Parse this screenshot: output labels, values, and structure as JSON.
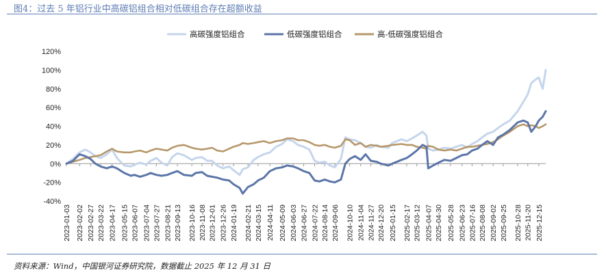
{
  "figure_title": "图4：过去 5 年铝行业中高碳铝组合相对低碳组合存在超额收益",
  "source_note": "资料来源：Wind，中国银河证券研究院，数据截止 2025 年 12 月 31 日",
  "colors": {
    "high": "#c5d5ec",
    "low": "#5b75a8",
    "diff": "#b6976a",
    "axis": "#999999",
    "rule": "#5b7bb3"
  },
  "chart_data": {
    "type": "line",
    "title": "",
    "xlabel": "",
    "ylabel": "",
    "ylim": [
      -40,
      120
    ],
    "yticks": [
      -40,
      -20,
      0,
      20,
      40,
      60,
      80,
      100,
      120
    ],
    "ytick_labels": [
      "-40%",
      "-20%",
      "0%",
      "20%",
      "40%",
      "60%",
      "80%",
      "100%",
      "120%"
    ],
    "legend_position": "top",
    "grid": false,
    "x_tick_labels": [
      "2023-01-03",
      "2023-02-02",
      "2023-02-27",
      "2023-03-22",
      "2023-04-17",
      "2023-05-15",
      "2023-06-07",
      "2023-07-04",
      "2023-07-27",
      "2023-08-21",
      "2023-09-13",
      "2023-10-16",
      "2023-11-08",
      "2023-12-01",
      "2023-12-26",
      "2024-01-19",
      "2024-02-21",
      "2024-03-15",
      "2024-04-11",
      "2024-05-09",
      "2024-06-03",
      "2024-06-27",
      "2024-07-22",
      "2024-08-14",
      "2024-09-06",
      "2024-10-10",
      "2024-11-04",
      "2024-11-27",
      "2024-12-20",
      "2025-01-15",
      "2025-02-17",
      "2025-03-12",
      "2025-04-07",
      "2025-04-30",
      "2025-05-28",
      "2025-06-23",
      "2025-07-16",
      "2025-08-08",
      "2025-09-02",
      "2025-09-25",
      "2025-10-28",
      "2025-11-20",
      "2025-12-15"
    ],
    "x_extent": [
      "2023-01-03",
      "2025-12-31"
    ],
    "series": [
      {
        "name": "高碳强度铝组合",
        "key": "high",
        "points": [
          [
            "2023-01-03",
            0
          ],
          [
            "2023-01-18",
            5
          ],
          [
            "2023-02-02",
            12
          ],
          [
            "2023-02-15",
            15
          ],
          [
            "2023-02-27",
            12
          ],
          [
            "2023-03-10",
            8
          ],
          [
            "2023-03-22",
            6
          ],
          [
            "2023-04-05",
            10
          ],
          [
            "2023-04-17",
            15
          ],
          [
            "2023-04-28",
            6
          ],
          [
            "2023-05-15",
            -2
          ],
          [
            "2023-05-30",
            -3
          ],
          [
            "2023-06-07",
            -1
          ],
          [
            "2023-06-20",
            1
          ],
          [
            "2023-07-04",
            -1
          ],
          [
            "2023-07-14",
            3
          ],
          [
            "2023-07-27",
            6
          ],
          [
            "2023-08-08",
            1
          ],
          [
            "2023-08-21",
            -2
          ],
          [
            "2023-09-01",
            7
          ],
          [
            "2023-09-13",
            11
          ],
          [
            "2023-09-28",
            9
          ],
          [
            "2023-10-16",
            4
          ],
          [
            "2023-10-25",
            6
          ],
          [
            "2023-11-08",
            7
          ],
          [
            "2023-11-20",
            3
          ],
          [
            "2023-12-01",
            3
          ],
          [
            "2023-12-13",
            -2
          ],
          [
            "2023-12-26",
            -5
          ],
          [
            "2024-01-09",
            -3
          ],
          [
            "2024-01-19",
            -7
          ],
          [
            "2024-02-02",
            -12
          ],
          [
            "2024-02-09",
            -6
          ],
          [
            "2024-02-21",
            -4
          ],
          [
            "2024-03-05",
            4
          ],
          [
            "2024-03-15",
            7
          ],
          [
            "2024-03-28",
            10
          ],
          [
            "2024-04-11",
            12
          ],
          [
            "2024-04-25",
            18
          ],
          [
            "2024-05-09",
            21
          ],
          [
            "2024-05-20",
            26
          ],
          [
            "2024-06-03",
            24
          ],
          [
            "2024-06-14",
            20
          ],
          [
            "2024-06-27",
            18
          ],
          [
            "2024-07-10",
            15
          ],
          [
            "2024-07-22",
            3
          ],
          [
            "2024-08-02",
            1
          ],
          [
            "2024-08-14",
            2
          ],
          [
            "2024-08-26",
            -2
          ],
          [
            "2024-09-06",
            -4
          ],
          [
            "2024-09-20",
            5
          ],
          [
            "2024-09-30",
            28
          ],
          [
            "2024-10-10",
            26
          ],
          [
            "2024-10-22",
            25
          ],
          [
            "2024-11-04",
            22
          ],
          [
            "2024-11-15",
            18
          ],
          [
            "2024-11-27",
            17
          ],
          [
            "2024-12-10",
            20
          ],
          [
            "2024-12-20",
            18
          ],
          [
            "2025-01-06",
            17
          ],
          [
            "2025-01-15",
            22
          ],
          [
            "2025-02-05",
            26
          ],
          [
            "2025-02-17",
            24
          ],
          [
            "2025-03-01",
            27
          ],
          [
            "2025-03-12",
            30
          ],
          [
            "2025-03-25",
            34
          ],
          [
            "2025-04-03",
            30
          ],
          [
            "2025-04-07",
            16
          ],
          [
            "2025-04-18",
            14
          ],
          [
            "2025-04-30",
            15
          ],
          [
            "2025-05-14",
            17
          ],
          [
            "2025-05-28",
            16
          ],
          [
            "2025-06-10",
            18
          ],
          [
            "2025-06-23",
            20
          ],
          [
            "2025-07-05",
            17
          ],
          [
            "2025-07-16",
            21
          ],
          [
            "2025-07-28",
            24
          ],
          [
            "2025-08-08",
            28
          ],
          [
            "2025-08-20",
            32
          ],
          [
            "2025-09-02",
            34
          ],
          [
            "2025-09-13",
            38
          ],
          [
            "2025-09-25",
            42
          ],
          [
            "2025-10-10",
            46
          ],
          [
            "2025-10-28",
            56
          ],
          [
            "2025-11-10",
            66
          ],
          [
            "2025-11-20",
            74
          ],
          [
            "2025-11-28",
            86
          ],
          [
            "2025-12-08",
            90
          ],
          [
            "2025-12-15",
            92
          ],
          [
            "2025-12-24",
            80
          ],
          [
            "2025-12-31",
            100
          ]
        ]
      },
      {
        "name": "低碳强度铝组合",
        "key": "low",
        "points": [
          [
            "2023-01-03",
            0
          ],
          [
            "2023-01-18",
            3
          ],
          [
            "2023-02-02",
            10
          ],
          [
            "2023-02-15",
            8
          ],
          [
            "2023-02-27",
            5
          ],
          [
            "2023-03-10",
            0
          ],
          [
            "2023-03-22",
            -3
          ],
          [
            "2023-04-05",
            -5
          ],
          [
            "2023-04-17",
            -3
          ],
          [
            "2023-04-28",
            -5
          ],
          [
            "2023-05-15",
            -10
          ],
          [
            "2023-05-30",
            -13
          ],
          [
            "2023-06-07",
            -12
          ],
          [
            "2023-06-20",
            -14
          ],
          [
            "2023-07-04",
            -12
          ],
          [
            "2023-07-14",
            -10
          ],
          [
            "2023-07-27",
            -12
          ],
          [
            "2023-08-08",
            -13
          ],
          [
            "2023-08-21",
            -12
          ],
          [
            "2023-09-01",
            -10
          ],
          [
            "2023-09-13",
            -8
          ],
          [
            "2023-09-28",
            -12
          ],
          [
            "2023-10-16",
            -13
          ],
          [
            "2023-10-25",
            -10
          ],
          [
            "2023-11-08",
            -9
          ],
          [
            "2023-11-20",
            -13
          ],
          [
            "2023-12-01",
            -14
          ],
          [
            "2023-12-13",
            -15
          ],
          [
            "2023-12-26",
            -17
          ],
          [
            "2024-01-09",
            -18
          ],
          [
            "2024-01-19",
            -22
          ],
          [
            "2024-02-02",
            -26
          ],
          [
            "2024-02-09",
            -32
          ],
          [
            "2024-02-21",
            -25
          ],
          [
            "2024-03-05",
            -22
          ],
          [
            "2024-03-15",
            -18
          ],
          [
            "2024-03-28",
            -15
          ],
          [
            "2024-04-11",
            -8
          ],
          [
            "2024-04-25",
            -5
          ],
          [
            "2024-05-09",
            -4
          ],
          [
            "2024-05-20",
            -2
          ],
          [
            "2024-06-03",
            -3
          ],
          [
            "2024-06-14",
            -5
          ],
          [
            "2024-06-27",
            -8
          ],
          [
            "2024-07-10",
            -10
          ],
          [
            "2024-07-22",
            -18
          ],
          [
            "2024-08-02",
            -19
          ],
          [
            "2024-08-14",
            -17
          ],
          [
            "2024-08-26",
            -19
          ],
          [
            "2024-09-06",
            -20
          ],
          [
            "2024-09-20",
            -17
          ],
          [
            "2024-09-30",
            0
          ],
          [
            "2024-10-10",
            5
          ],
          [
            "2024-10-22",
            8
          ],
          [
            "2024-11-04",
            4
          ],
          [
            "2024-11-15",
            10
          ],
          [
            "2024-11-27",
            3
          ],
          [
            "2024-12-10",
            2
          ],
          [
            "2024-12-20",
            0
          ],
          [
            "2025-01-06",
            -2
          ],
          [
            "2025-01-15",
            0
          ],
          [
            "2025-02-05",
            4
          ],
          [
            "2025-02-17",
            6
          ],
          [
            "2025-03-01",
            10
          ],
          [
            "2025-03-12",
            14
          ],
          [
            "2025-03-25",
            20
          ],
          [
            "2025-04-03",
            18
          ],
          [
            "2025-04-07",
            -5
          ],
          [
            "2025-04-18",
            -2
          ],
          [
            "2025-04-30",
            1
          ],
          [
            "2025-05-14",
            4
          ],
          [
            "2025-05-28",
            3
          ],
          [
            "2025-06-10",
            6
          ],
          [
            "2025-06-23",
            9
          ],
          [
            "2025-07-05",
            10
          ],
          [
            "2025-07-16",
            14
          ],
          [
            "2025-07-28",
            16
          ],
          [
            "2025-08-08",
            20
          ],
          [
            "2025-08-20",
            24
          ],
          [
            "2025-09-02",
            20
          ],
          [
            "2025-09-13",
            28
          ],
          [
            "2025-09-25",
            31
          ],
          [
            "2025-10-10",
            36
          ],
          [
            "2025-10-28",
            44
          ],
          [
            "2025-11-10",
            46
          ],
          [
            "2025-11-20",
            44
          ],
          [
            "2025-11-28",
            34
          ],
          [
            "2025-12-08",
            40
          ],
          [
            "2025-12-15",
            46
          ],
          [
            "2025-12-24",
            50
          ],
          [
            "2025-12-31",
            56
          ]
        ]
      },
      {
        "name": "高-低碳强度铝组合",
        "key": "diff",
        "points": [
          [
            "2023-01-03",
            0
          ],
          [
            "2023-01-18",
            2
          ],
          [
            "2023-02-02",
            4
          ],
          [
            "2023-02-15",
            6
          ],
          [
            "2023-02-27",
            7
          ],
          [
            "2023-03-10",
            8
          ],
          [
            "2023-03-22",
            9
          ],
          [
            "2023-04-05",
            13
          ],
          [
            "2023-04-17",
            16
          ],
          [
            "2023-04-28",
            13
          ],
          [
            "2023-05-15",
            12
          ],
          [
            "2023-05-30",
            12
          ],
          [
            "2023-06-07",
            13
          ],
          [
            "2023-06-20",
            14
          ],
          [
            "2023-07-04",
            12
          ],
          [
            "2023-07-14",
            14
          ],
          [
            "2023-07-27",
            16
          ],
          [
            "2023-08-08",
            15
          ],
          [
            "2023-08-21",
            14
          ],
          [
            "2023-09-01",
            17
          ],
          [
            "2023-09-13",
            19
          ],
          [
            "2023-09-28",
            20
          ],
          [
            "2023-10-16",
            17
          ],
          [
            "2023-10-25",
            16
          ],
          [
            "2023-11-08",
            15
          ],
          [
            "2023-11-20",
            16
          ],
          [
            "2023-12-01",
            17
          ],
          [
            "2023-12-13",
            14
          ],
          [
            "2023-12-26",
            13
          ],
          [
            "2024-01-09",
            16
          ],
          [
            "2024-01-19",
            18
          ],
          [
            "2024-02-02",
            20
          ],
          [
            "2024-02-09",
            22
          ],
          [
            "2024-02-21",
            21
          ],
          [
            "2024-03-05",
            22
          ],
          [
            "2024-03-15",
            23
          ],
          [
            "2024-03-28",
            24
          ],
          [
            "2024-04-11",
            22
          ],
          [
            "2024-04-25",
            24
          ],
          [
            "2024-05-09",
            25
          ],
          [
            "2024-05-20",
            27
          ],
          [
            "2024-06-03",
            27
          ],
          [
            "2024-06-14",
            25
          ],
          [
            "2024-06-27",
            25
          ],
          [
            "2024-07-10",
            23
          ],
          [
            "2024-07-22",
            20
          ],
          [
            "2024-08-02",
            19
          ],
          [
            "2024-08-14",
            20
          ],
          [
            "2024-08-26",
            18
          ],
          [
            "2024-09-06",
            17
          ],
          [
            "2024-09-20",
            19
          ],
          [
            "2024-09-30",
            26
          ],
          [
            "2024-10-10",
            25
          ],
          [
            "2024-10-22",
            20
          ],
          [
            "2024-11-04",
            22
          ],
          [
            "2024-11-15",
            18
          ],
          [
            "2024-11-27",
            20
          ],
          [
            "2024-12-10",
            19
          ],
          [
            "2024-12-20",
            18
          ],
          [
            "2025-01-06",
            19
          ],
          [
            "2025-01-15",
            20
          ],
          [
            "2025-02-05",
            21
          ],
          [
            "2025-02-17",
            20
          ],
          [
            "2025-03-01",
            20
          ],
          [
            "2025-03-12",
            18
          ],
          [
            "2025-03-25",
            17
          ],
          [
            "2025-04-03",
            16
          ],
          [
            "2025-04-07",
            19
          ],
          [
            "2025-04-18",
            18
          ],
          [
            "2025-04-30",
            15
          ],
          [
            "2025-05-14",
            14
          ],
          [
            "2025-05-28",
            15
          ],
          [
            "2025-06-10",
            14
          ],
          [
            "2025-06-23",
            16
          ],
          [
            "2025-07-05",
            18
          ],
          [
            "2025-07-16",
            18
          ],
          [
            "2025-07-28",
            19
          ],
          [
            "2025-08-08",
            20
          ],
          [
            "2025-08-20",
            21
          ],
          [
            "2025-09-02",
            23
          ],
          [
            "2025-09-13",
            26
          ],
          [
            "2025-09-25",
            30
          ],
          [
            "2025-10-10",
            34
          ],
          [
            "2025-10-28",
            40
          ],
          [
            "2025-11-10",
            42
          ],
          [
            "2025-11-20",
            40
          ],
          [
            "2025-11-28",
            41
          ],
          [
            "2025-12-08",
            40
          ],
          [
            "2025-12-15",
            38
          ],
          [
            "2025-12-24",
            40
          ],
          [
            "2025-12-31",
            42
          ]
        ]
      }
    ]
  }
}
